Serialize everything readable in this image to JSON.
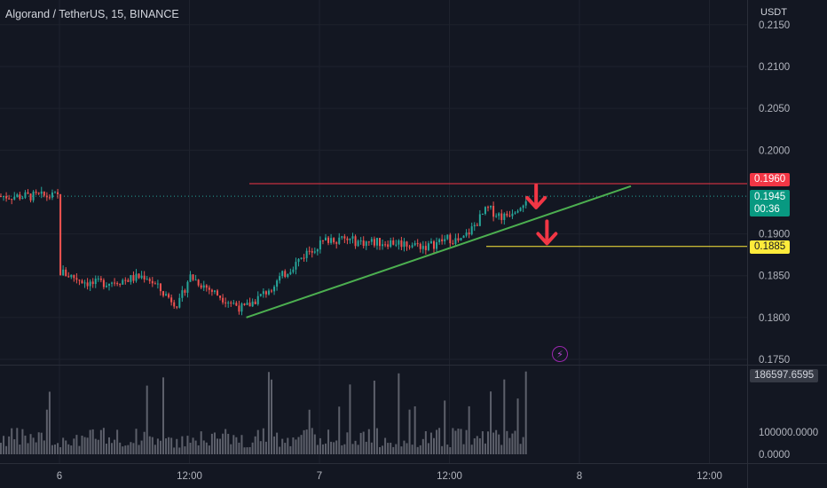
{
  "header": {
    "symbol_title": "Algorand / TetherUS, 15, BINANCE",
    "currency": "USDT"
  },
  "price_scale": {
    "ticks": [
      "0.2150",
      "0.2100",
      "0.2050",
      "0.2000",
      "0.1900",
      "0.1850",
      "0.1800",
      "0.1750"
    ]
  },
  "volume_scale": {
    "ticks": [
      "100000.0000",
      "0.0000"
    ]
  },
  "time_axis": {
    "labels": [
      "6",
      "12:00",
      "7",
      "12:00",
      "8",
      "12:00"
    ]
  },
  "tags": {
    "resistance": "0.1960",
    "last_price": "0.1945",
    "countdown": "00:36",
    "support": "0.1885",
    "last_volume": "186597.6595"
  },
  "colors": {
    "up": "#26a69a",
    "down": "#ef5350",
    "resistance": "#f23645",
    "support": "#ffeb3b",
    "trendline": "#4caf50",
    "arrow": "#f23645",
    "background": "#131722"
  },
  "icons": {
    "event": "lightning-bolt-icon",
    "event_glyph": "⚡"
  },
  "chart_data": {
    "type": "candlestick",
    "title": "Algorand / TetherUS, 15, BINANCE",
    "ylabel": "USDT",
    "ylim": [
      0.1745,
      0.2165
    ],
    "price_path": [
      [
        "6 00:00",
        0.1855
      ],
      [
        "6 03:00",
        0.184
      ],
      [
        "6 06:00",
        0.1845
      ],
      [
        "6 08:00",
        0.185
      ],
      [
        "6 09:30",
        0.183
      ],
      [
        "6 11:00",
        0.1815
      ],
      [
        "6 12:00",
        0.185
      ],
      [
        "6 14:30",
        0.1828
      ],
      [
        "6 17:00",
        0.181
      ],
      [
        "6 19:00",
        0.183
      ],
      [
        "6 21:00",
        0.1855
      ],
      [
        "6 23:00",
        0.188
      ],
      [
        "7 01:00",
        0.1895
      ],
      [
        "7 04:00",
        0.189
      ],
      [
        "7 07:00",
        0.189
      ],
      [
        "7 10:00",
        0.1885
      ],
      [
        "7 12:00",
        0.1895
      ],
      [
        "7 13:00",
        0.189
      ],
      [
        "7 14:00",
        0.1905
      ],
      [
        "7 15:30",
        0.193
      ],
      [
        "7 17:00",
        0.192
      ],
      [
        "7 18:30",
        0.1935
      ],
      [
        "7 19:15",
        0.1945
      ]
    ],
    "horizontal_levels": [
      {
        "name": "resistance",
        "value": 0.196
      },
      {
        "name": "support",
        "value": 0.1885
      }
    ],
    "last_price": 0.1945,
    "trendline": {
      "from": [
        "6 17:15",
        0.18
      ],
      "to": [
        "8 04:45",
        0.1957
      ]
    },
    "annotations": [
      {
        "type": "arrow-down",
        "at": [
          "7 20:00",
          0.1958
        ]
      },
      {
        "type": "arrow-down",
        "at": [
          "7 21:00",
          0.1915
        ]
      }
    ],
    "volume": {
      "last": 186597.6595,
      "ylim": [
        0,
        200000
      ],
      "typical": 50000
    },
    "x_ticks": [
      "6",
      "6 12:00",
      "7",
      "7 12:00",
      "8",
      "8 12:00"
    ],
    "grid": true
  }
}
